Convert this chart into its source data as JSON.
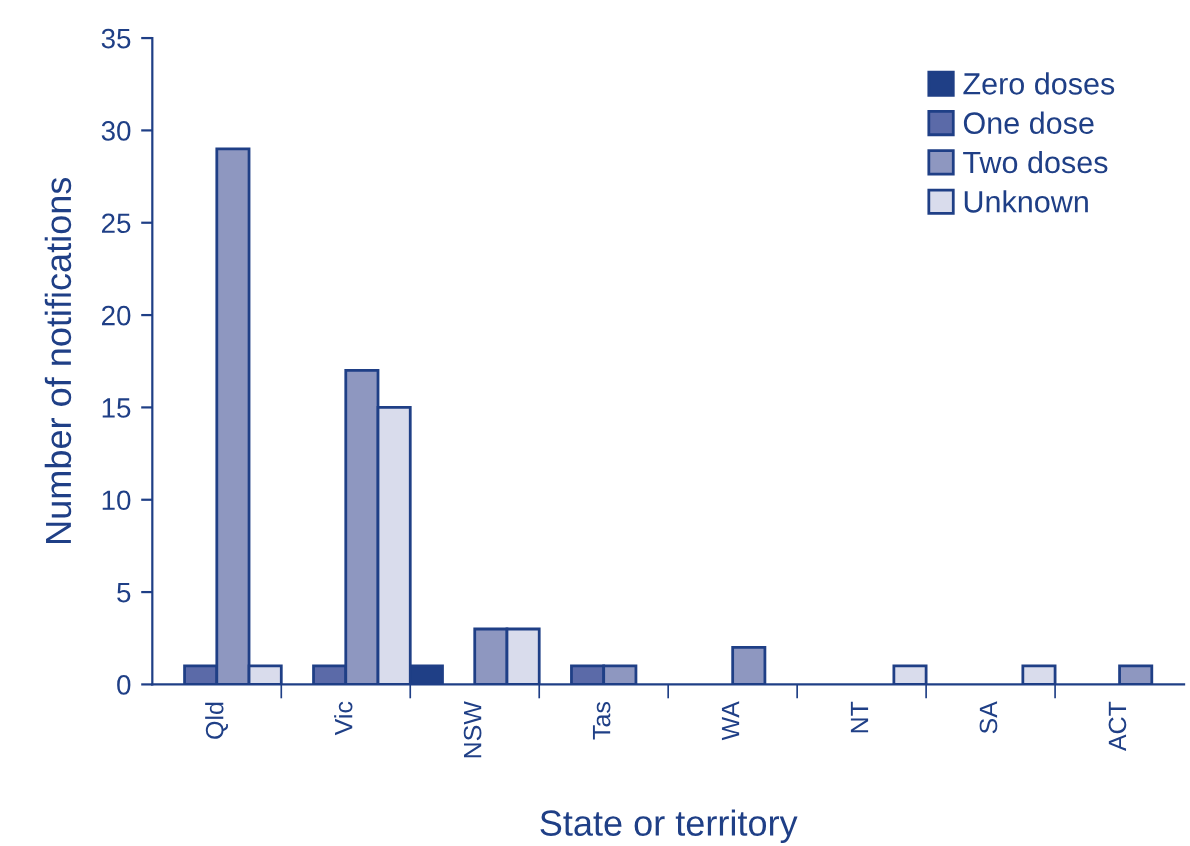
{
  "chart_data": {
    "type": "bar",
    "xlabel": "State or territory",
    "ylabel": "Number of notifications",
    "categories": [
      "Qld",
      "Vic",
      "NSW",
      "Tas",
      "WA",
      "NT",
      "SA",
      "ACT"
    ],
    "series": [
      {
        "name": "Zero doses",
        "color": "#1f3f86",
        "values": [
          0,
          0,
          1,
          0,
          0,
          0,
          0,
          0
        ]
      },
      {
        "name": "One dose",
        "color": "#5b6aa8",
        "values": [
          1,
          1,
          0,
          1,
          0,
          0,
          0,
          0
        ]
      },
      {
        "name": "Two doses",
        "color": "#8e97c0",
        "values": [
          29,
          17,
          3,
          1,
          2,
          0,
          0,
          1
        ]
      },
      {
        "name": "Unknown",
        "color": "#d9dcec",
        "values": [
          1,
          15,
          3,
          0,
          0,
          1,
          1,
          0
        ]
      }
    ],
    "ylim": [
      0,
      35
    ],
    "yticks": [
      0,
      5,
      10,
      15,
      20,
      25,
      30,
      35
    ],
    "grid": false,
    "legend": "top right"
  }
}
